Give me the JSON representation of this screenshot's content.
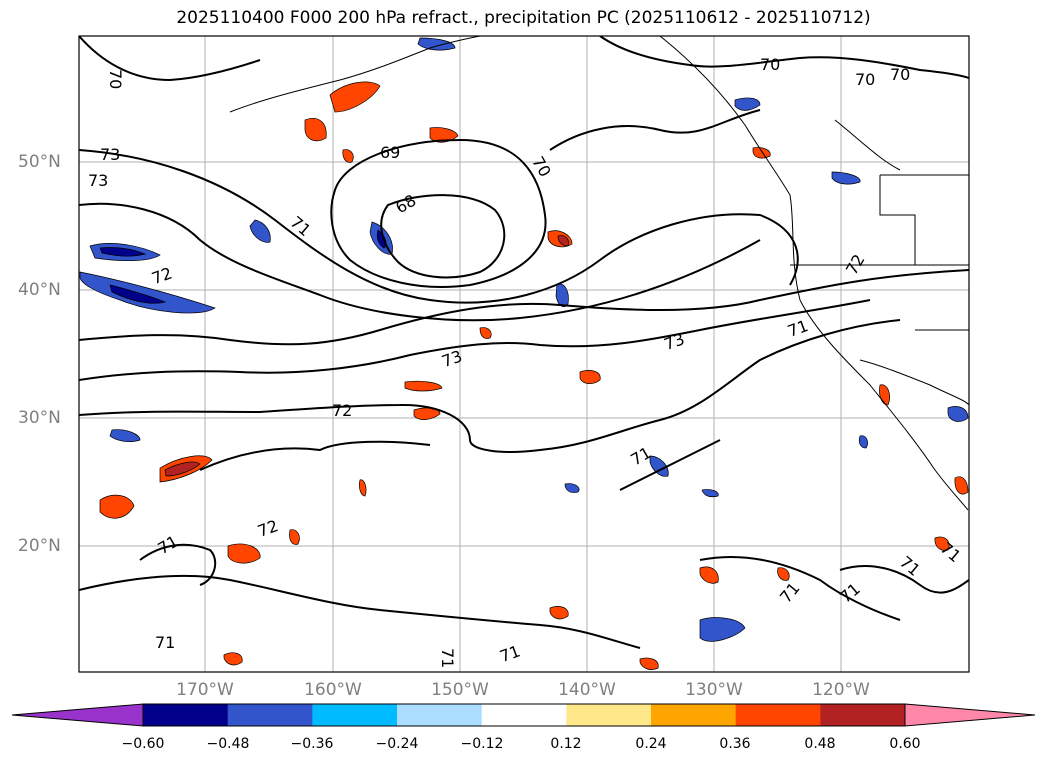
{
  "title": "2025110400 F000 200 hPa refract., precipitation PC (2025110612 - 2025110712)",
  "lat_labels": [
    "50°N",
    "40°N",
    "30°N",
    "20°N"
  ],
  "lon_labels": [
    "170°W",
    "160°W",
    "150°W",
    "140°W",
    "130°W",
    "120°W"
  ],
  "colorbar": {
    "ticks": [
      "−0.60",
      "−0.48",
      "−0.36",
      "−0.24",
      "−0.12",
      "0.12",
      "0.24",
      "0.36",
      "0.48",
      "0.60"
    ],
    "colors": [
      "#9933cc",
      "#00008b",
      "#3355cc",
      "#00bbff",
      "#aaddff",
      "#ffffff",
      "#ffe88a",
      "#ffa500",
      "#ff4500",
      "#b22222",
      "#ff88aa"
    ]
  },
  "contour_labels": [
    "70",
    "70",
    "70",
    "70",
    "73",
    "73",
    "69",
    "70",
    "68",
    "71",
    "72",
    "71",
    "72",
    "73",
    "73",
    "71",
    "72",
    "71",
    "71",
    "71",
    "72",
    "71",
    "71",
    "71",
    "71",
    "71"
  ]
}
